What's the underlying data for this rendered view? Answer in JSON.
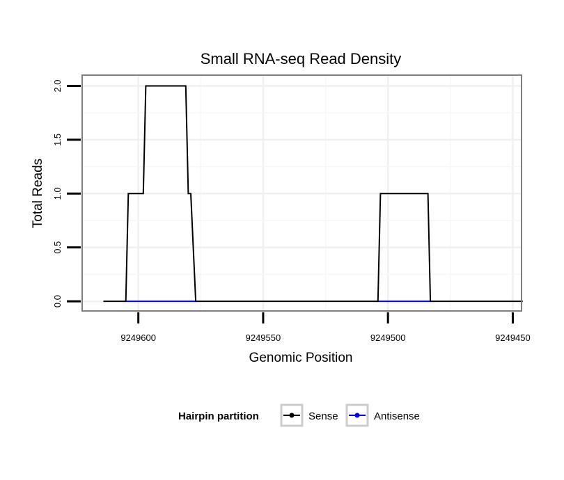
{
  "chart_data": {
    "type": "line",
    "title": "Small RNA-seq Read Density",
    "xlabel": "Genomic Position",
    "ylabel": "Total Reads",
    "x_reversed": true,
    "xlim": [
      9249622.5,
      9249446.5
    ],
    "ylim": [
      -0.09,
      2.1
    ],
    "x_ticks": [
      9249600,
      9249550,
      9249500,
      9249450
    ],
    "x_tick_labels": [
      "9249600",
      "9249550",
      "9249500",
      "9249450"
    ],
    "y_ticks": [
      0.0,
      0.5,
      1.0,
      1.5,
      2.0
    ],
    "y_tick_labels": [
      "0.0",
      "0.5",
      "1.0",
      "1.5",
      "2.0"
    ],
    "grid": true,
    "legend": {
      "title": "Hairpin partition",
      "position": "bottom",
      "entries": [
        "Sense",
        "Antisense"
      ]
    },
    "series": [
      {
        "name": "Sense",
        "color": "#000000",
        "x": [
          9249614,
          9249605,
          9249604,
          9249598,
          9249597,
          9249593,
          9249581,
          9249580,
          9249579,
          9249577,
          9249576,
          9249504,
          9249503,
          9249495,
          9249484,
          9249483,
          9249446
        ],
        "y": [
          0,
          0,
          1,
          1,
          2,
          2,
          2,
          1,
          1,
          0,
          0,
          0,
          1,
          1,
          1,
          0,
          0
        ]
      },
      {
        "name": "Antisense",
        "color": "#0000ff",
        "x": [
          9249605,
          9249577,
          9249504,
          9249483
        ],
        "y": [
          0,
          0,
          0,
          0
        ],
        "segments": [
          [
            0,
            1
          ],
          [
            2,
            3
          ]
        ]
      }
    ]
  }
}
